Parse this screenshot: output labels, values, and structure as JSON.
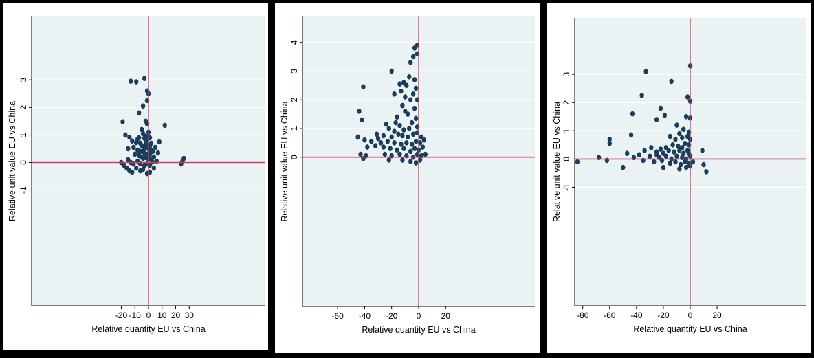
{
  "colors": {
    "panel_bg": "#ffffff",
    "plot_bg": "#eaf2f3",
    "grid": "#ffffff",
    "point": "#1a3d5c",
    "ref_line": "#d23a5a",
    "axis": "#000000"
  },
  "chart_data": [
    {
      "type": "scatter",
      "xlabel": "Relative quantity EU vs China",
      "ylabel": "Relative unit value EU vs China",
      "xticks": [
        -20,
        -10,
        0,
        10,
        20,
        30
      ],
      "yticks": [
        -1,
        0,
        1,
        2,
        3
      ],
      "xlim": [
        -86,
        86
      ],
      "ylim": [
        -5.2,
        5.3
      ],
      "reference_lines": {
        "x": 0,
        "y": 0
      },
      "grid": true,
      "points": [
        [
          -3,
          3.05
        ],
        [
          -13,
          2.95
        ],
        [
          -9,
          2.93
        ],
        [
          -1,
          2.6
        ],
        [
          0,
          2.5
        ],
        [
          -1,
          2.25
        ],
        [
          -4,
          2.05
        ],
        [
          -7,
          1.8
        ],
        [
          -2,
          1.5
        ],
        [
          -19,
          1.48
        ],
        [
          -1,
          1.4
        ],
        [
          12,
          1.35
        ],
        [
          -17,
          1.0
        ],
        [
          -14,
          0.92
        ],
        [
          -7,
          0.9
        ],
        [
          -5,
          1.2
        ],
        [
          -4,
          1.05
        ],
        [
          -3,
          0.88
        ],
        [
          -2,
          0.95
        ],
        [
          -1,
          0.8
        ],
        [
          0,
          1.1
        ],
        [
          1,
          0.9
        ],
        [
          -12,
          0.78
        ],
        [
          -9,
          0.72
        ],
        [
          -6,
          0.7
        ],
        [
          -5,
          0.62
        ],
        [
          -3,
          0.6
        ],
        [
          -2,
          0.55
        ],
        [
          -1,
          0.65
        ],
        [
          0,
          0.5
        ],
        [
          1,
          0.6
        ],
        [
          2,
          0.45
        ],
        [
          -11,
          0.55
        ],
        [
          -8,
          0.45
        ],
        [
          -6,
          0.4
        ],
        [
          -4,
          0.42
        ],
        [
          -3,
          0.35
        ],
        [
          -2,
          0.3
        ],
        [
          0,
          0.32
        ],
        [
          1,
          0.28
        ],
        [
          3,
          0.4
        ],
        [
          5,
          0.55
        ],
        [
          7,
          0.35
        ],
        [
          -10,
          0.3
        ],
        [
          -7,
          0.25
        ],
        [
          -5,
          0.2
        ],
        [
          -4,
          0.15
        ],
        [
          -2,
          0.18
        ],
        [
          0,
          0.12
        ],
        [
          2,
          0.1
        ],
        [
          4,
          0.2
        ],
        [
          6,
          0.05
        ],
        [
          -15,
          0.1
        ],
        [
          -13,
          0.0
        ],
        [
          -11,
          -0.05
        ],
        [
          -8,
          0.05
        ],
        [
          -6,
          -0.05
        ],
        [
          -3,
          -0.1
        ],
        [
          -1,
          -0.05
        ],
        [
          1,
          -0.1
        ],
        [
          3,
          0.02
        ],
        [
          -18,
          -0.1
        ],
        [
          -16,
          -0.2
        ],
        [
          -14,
          -0.3
        ],
        [
          -12,
          -0.35
        ],
        [
          -9,
          -0.2
        ],
        [
          -6,
          -0.3
        ],
        [
          -4,
          -0.25
        ],
        [
          -1,
          -0.4
        ],
        [
          1,
          -0.35
        ],
        [
          4,
          -0.2
        ],
        [
          -20,
          0.0
        ],
        [
          25,
          0.05
        ],
        [
          26,
          0.15
        ],
        [
          24,
          -0.05
        ],
        [
          8,
          0.75
        ],
        [
          -15,
          0.5
        ],
        [
          -2,
          0.75
        ],
        [
          2,
          0.7
        ],
        [
          -8,
          0.85
        ]
      ]
    },
    {
      "type": "scatter",
      "xlabel": "Relative quantity EU vs China",
      "ylabel": "Relative unit value EU vs China",
      "xticks": [
        -60,
        -40,
        -20,
        0,
        20
      ],
      "yticks": [
        0,
        1,
        2,
        3,
        4
      ],
      "xlim": [
        -86,
        86
      ],
      "ylim": [
        -5.2,
        4.9
      ],
      "reference_lines": {
        "x": 0,
        "y": 0
      },
      "grid": true,
      "points": [
        [
          -1,
          3.9
        ],
        [
          -3,
          3.8
        ],
        [
          -1,
          3.6
        ],
        [
          -4,
          3.5
        ],
        [
          -6,
          3.3
        ],
        [
          -20,
          3.0
        ],
        [
          -7,
          2.8
        ],
        [
          -11,
          2.6
        ],
        [
          -14,
          2.55
        ],
        [
          -41,
          2.45
        ],
        [
          -9,
          2.5
        ],
        [
          -2,
          2.4
        ],
        [
          -4,
          2.2
        ],
        [
          -10,
          2.1
        ],
        [
          -18,
          2.2
        ],
        [
          -6,
          2.0
        ],
        [
          -1,
          2.0
        ],
        [
          -12,
          1.8
        ],
        [
          -44,
          1.6
        ],
        [
          -3,
          1.7
        ],
        [
          -42,
          1.3
        ],
        [
          -8,
          1.5
        ],
        [
          -16,
          1.4
        ],
        [
          -2,
          1.35
        ],
        [
          -24,
          1.15
        ],
        [
          -14,
          1.1
        ],
        [
          -5,
          1.2
        ],
        [
          -22,
          1.0
        ],
        [
          -18,
          0.9
        ],
        [
          -11,
          0.95
        ],
        [
          -7,
          1.0
        ],
        [
          -1,
          1.05
        ],
        [
          -31,
          0.8
        ],
        [
          -26,
          0.75
        ],
        [
          -20,
          0.7
        ],
        [
          -15,
          0.8
        ],
        [
          -12,
          0.75
        ],
        [
          -8,
          0.7
        ],
        [
          -4,
          0.8
        ],
        [
          -1,
          0.85
        ],
        [
          2,
          0.7
        ],
        [
          -45,
          0.7
        ],
        [
          -40,
          0.6
        ],
        [
          -35,
          0.55
        ],
        [
          -28,
          0.5
        ],
        [
          -23,
          0.55
        ],
        [
          -18,
          0.5
        ],
        [
          -13,
          0.45
        ],
        [
          -9,
          0.5
        ],
        [
          -5,
          0.45
        ],
        [
          -2,
          0.55
        ],
        [
          1,
          0.5
        ],
        [
          4,
          0.6
        ],
        [
          -38,
          0.35
        ],
        [
          -32,
          0.4
        ],
        [
          -26,
          0.35
        ],
        [
          -21,
          0.3
        ],
        [
          -16,
          0.25
        ],
        [
          -11,
          0.3
        ],
        [
          -6,
          0.2
        ],
        [
          -3,
          0.3
        ],
        [
          0,
          0.25
        ],
        [
          3,
          0.35
        ],
        [
          -43,
          0.1
        ],
        [
          -39,
          0.05
        ],
        [
          -25,
          0.1
        ],
        [
          -20,
          0.05
        ],
        [
          -14,
          0.1
        ],
        [
          -9,
          0.05
        ],
        [
          -4,
          0.0
        ],
        [
          -1,
          0.1
        ],
        [
          2,
          0.05
        ],
        [
          5,
          0.1
        ],
        [
          -41,
          -0.05
        ],
        [
          -22,
          -0.1
        ],
        [
          -12,
          -0.1
        ],
        [
          -6,
          -0.15
        ],
        [
          -2,
          -0.2
        ],
        [
          1,
          -0.1
        ],
        [
          -30,
          0.65
        ],
        [
          -17,
          1.2
        ],
        [
          -10,
          1.6
        ],
        [
          -13,
          2.3
        ],
        [
          -3,
          2.7
        ]
      ]
    },
    {
      "type": "scatter",
      "xlabel": "Relative quantity EU vs China",
      "ylabel": "Relative unit value EU vs China",
      "xticks": [
        -80,
        -60,
        -40,
        -20,
        0,
        20
      ],
      "yticks": [
        -1,
        0,
        1,
        2,
        3
      ],
      "xlim": [
        -86,
        86
      ],
      "ylim": [
        -5.2,
        5.0
      ],
      "reference_lines": {
        "x": 0,
        "y": 0
      },
      "grid": true,
      "points": [
        [
          0,
          3.3
        ],
        [
          -33,
          3.1
        ],
        [
          -14,
          2.75
        ],
        [
          -2,
          2.2
        ],
        [
          -36,
          2.25
        ],
        [
          0,
          2.05
        ],
        [
          -22,
          1.8
        ],
        [
          -43,
          1.6
        ],
        [
          -19,
          1.55
        ],
        [
          -25,
          1.4
        ],
        [
          -3,
          1.5
        ],
        [
          0,
          1.45
        ],
        [
          -10,
          1.2
        ],
        [
          -5,
          1.05
        ],
        [
          -8,
          0.9
        ],
        [
          -1,
          0.95
        ],
        [
          -44,
          0.85
        ],
        [
          -15,
          0.8
        ],
        [
          -11,
          0.7
        ],
        [
          -6,
          0.75
        ],
        [
          -2,
          0.8
        ],
        [
          0,
          0.7
        ],
        [
          -60,
          0.7
        ],
        [
          -60,
          0.55
        ],
        [
          -29,
          0.4
        ],
        [
          -22,
          0.35
        ],
        [
          -18,
          0.4
        ],
        [
          -13,
          0.5
        ],
        [
          -9,
          0.45
        ],
        [
          -4,
          0.55
        ],
        [
          -1,
          0.5
        ],
        [
          -34,
          0.3
        ],
        [
          -25,
          0.25
        ],
        [
          -20,
          0.2
        ],
        [
          -16,
          0.3
        ],
        [
          -12,
          0.25
        ],
        [
          -8,
          0.3
        ],
        [
          -5,
          0.2
        ],
        [
          -2,
          0.3
        ],
        [
          9,
          0.3
        ],
        [
          -47,
          0.2
        ],
        [
          -38,
          0.15
        ],
        [
          -30,
          0.1
        ],
        [
          -23,
          0.05
        ],
        [
          -18,
          0.1
        ],
        [
          -14,
          0.0
        ],
        [
          -10,
          0.1
        ],
        [
          -6,
          0.05
        ],
        [
          -3,
          0.0
        ],
        [
          0,
          0.1
        ],
        [
          -68,
          0.05
        ],
        [
          -42,
          0.05
        ],
        [
          -35,
          -0.05
        ],
        [
          -27,
          -0.1
        ],
        [
          -21,
          -0.05
        ],
        [
          -15,
          -0.15
        ],
        [
          -11,
          -0.1
        ],
        [
          -7,
          -0.2
        ],
        [
          -4,
          -0.1
        ],
        [
          -1,
          -0.15
        ],
        [
          2,
          -0.1
        ],
        [
          -84,
          -0.1
        ],
        [
          -62,
          -0.05
        ],
        [
          -50,
          -0.3
        ],
        [
          -20,
          -0.3
        ],
        [
          -8,
          -0.35
        ],
        [
          -3,
          -0.3
        ],
        [
          0,
          -0.25
        ],
        [
          10,
          -0.2
        ],
        [
          12,
          -0.45
        ],
        [
          -25,
          0.15
        ],
        [
          -6,
          0.4
        ],
        [
          -1,
          0.2
        ]
      ]
    }
  ]
}
